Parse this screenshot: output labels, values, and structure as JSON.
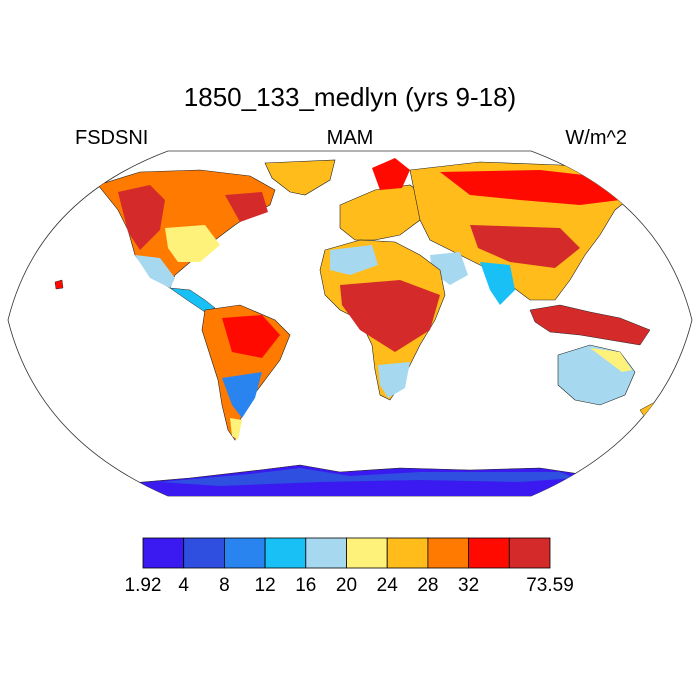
{
  "title": "1850_133_medlyn (yrs 9-18)",
  "left_label": "FSDSNI",
  "center_label": "MAM",
  "right_label": "W/m^2",
  "colorbar": {
    "colors": [
      "#3a1af0",
      "#2e4fe0",
      "#2a84f0",
      "#18c0f5",
      "#a6d8f0",
      "#fff27a",
      "#ffbc1a",
      "#ff7a00",
      "#ff0a00",
      "#d42a2a"
    ],
    "labels": [
      "1.92",
      "4",
      "8",
      "12",
      "16",
      "20",
      "24",
      "28",
      "32",
      "73.59"
    ]
  }
}
